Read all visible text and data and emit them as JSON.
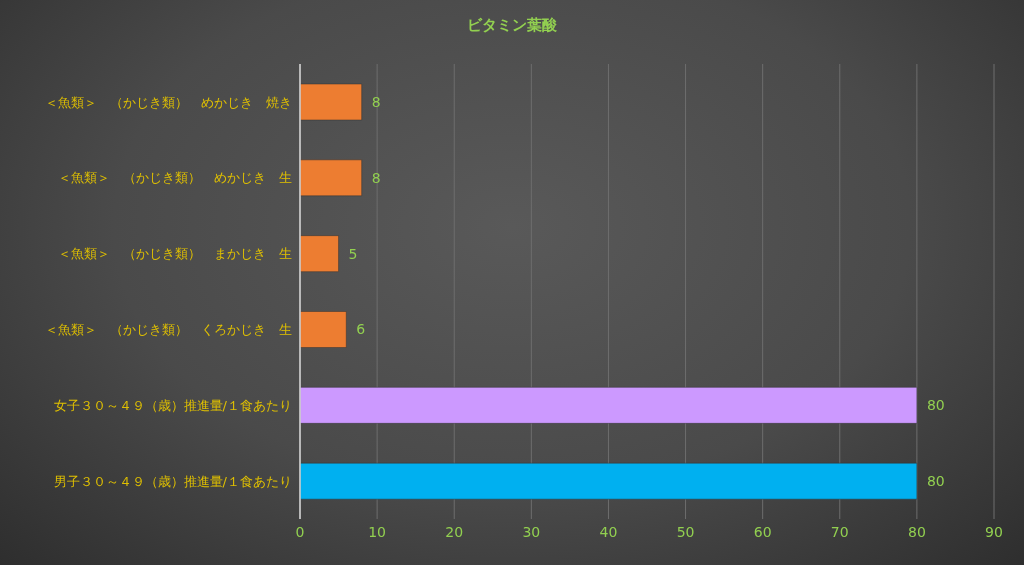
{
  "chart_data": {
    "type": "bar",
    "orientation": "horizontal",
    "title": "ビタミン葉酸",
    "categories": [
      "＜魚類＞　（かじき類）　めかじき　焼き",
      "＜魚類＞　（かじき類）　めかじき　生",
      "＜魚類＞　（かじき類）　まかじき　生",
      "＜魚類＞　（かじき類）　くろかじき　生",
      "女子３０～４９（歳）推進量/１食あたり",
      "男子３０～４９（歳）推進量/１食あたり"
    ],
    "values": [
      8,
      8,
      5,
      6,
      80,
      80
    ],
    "colors": [
      "#ed7d31",
      "#ed7d31",
      "#ed7d31",
      "#ed7d31",
      "#cc99ff",
      "#00b0f0"
    ],
    "xlim": [
      0,
      90
    ],
    "xticks": [
      0,
      10,
      20,
      30,
      40,
      50,
      60,
      70,
      80,
      90
    ],
    "grid": "x",
    "data_labels": true,
    "legend": false
  }
}
